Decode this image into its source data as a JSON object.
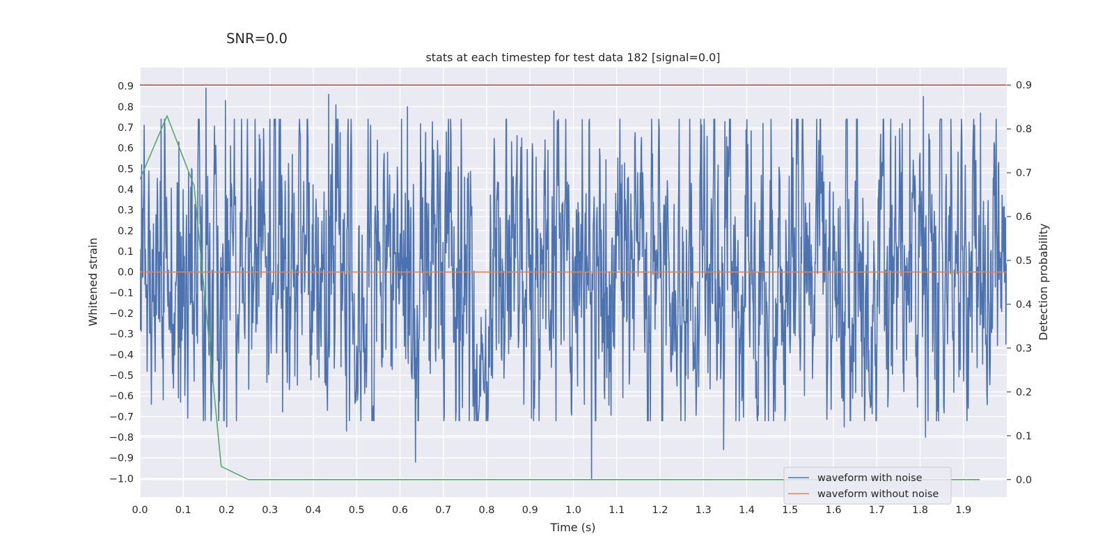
{
  "chart_data": {
    "type": "line",
    "suptitle": "SNR=0.0",
    "title": "stats at each timestep for test data 182 [signal=0.0]",
    "xlabel": "Time (s)",
    "ylabel": "Whitened strain",
    "y2label": "Detection probability",
    "xlim": [
      0.0,
      2.0
    ],
    "ylim": [
      -1.09,
      0.99
    ],
    "y2lim": [
      -0.04,
      0.94
    ],
    "grid": true,
    "legend_position": "lower-right",
    "xticks": [
      "0.0",
      "0.1",
      "0.2",
      "0.3",
      "0.4",
      "0.5",
      "0.6",
      "0.7",
      "0.8",
      "0.9",
      "1.0",
      "1.1",
      "1.2",
      "1.3",
      "1.4",
      "1.5",
      "1.6",
      "1.7",
      "1.8",
      "1.9"
    ],
    "yticks": [
      "0.9",
      "0.8",
      "0.7",
      "0.6",
      "0.5",
      "0.4",
      "0.3",
      "0.2",
      "0.1",
      "0.0",
      "−0.1",
      "−0.2",
      "−0.3",
      "−0.4",
      "−0.5",
      "−0.6",
      "−0.7",
      "−0.8",
      "−0.9",
      "−1.0"
    ],
    "y2ticks": [
      "0.9",
      "0.8",
      "0.7",
      "0.6",
      "0.5",
      "0.4",
      "0.3",
      "0.2",
      "0.1",
      "0.0"
    ],
    "series": [
      {
        "name": "waveform with noise",
        "axis": "left",
        "color": "#4c72b0",
        "kind": "noise",
        "n_samples": 2048,
        "x_range": [
          0.0,
          1.999
        ],
        "spikes": [
          {
            "x": 0.152,
            "y": 0.89
          },
          {
            "x": 0.197,
            "y": 0.83
          },
          {
            "x": 0.436,
            "y": 0.86
          },
          {
            "x": 0.452,
            "y": 0.81
          },
          {
            "x": 0.617,
            "y": 0.8
          },
          {
            "x": 0.955,
            "y": 0.78
          },
          {
            "x": 1.808,
            "y": 0.85
          },
          {
            "x": 1.939,
            "y": 0.77
          },
          {
            "x": 1.042,
            "y": -1.0
          },
          {
            "x": 0.636,
            "y": -0.92
          },
          {
            "x": 1.347,
            "y": -0.86
          },
          {
            "x": 1.812,
            "y": -0.8
          },
          {
            "x": 0.477,
            "y": -0.77
          },
          {
            "x": 0.2,
            "y": -0.75
          },
          {
            "x": 1.625,
            "y": -0.75
          },
          {
            "x": 0.094,
            "y": -0.63
          },
          {
            "x": 0.09,
            "y": 0.63
          }
        ]
      },
      {
        "name": "waveform without noise",
        "axis": "left",
        "color": "#dd8452",
        "x": [
          0.0,
          1.999
        ],
        "y": [
          0.0,
          0.0
        ]
      },
      {
        "name": "detection probability",
        "axis": "right",
        "color": "#55a868",
        "x": [
          0.0,
          0.0625,
          0.125,
          0.1875,
          0.25,
          0.3125,
          0.375,
          0.4375,
          0.5,
          0.5625,
          0.625,
          0.6875,
          0.75,
          0.8125,
          0.875,
          0.9375,
          1.0,
          1.0625,
          1.125,
          1.1875,
          1.25,
          1.3125,
          1.375,
          1.4375,
          1.5,
          1.5625,
          1.625,
          1.6875,
          1.75,
          1.8125,
          1.875,
          1.9375
        ],
        "y": [
          0.685,
          0.83,
          0.67,
          0.03,
          0.0,
          0.0,
          0.0,
          0.0,
          0.0,
          0.0,
          0.0,
          0.0,
          0.0,
          0.0,
          0.0,
          0.0,
          0.0,
          0.0,
          0.0,
          0.0,
          0.0,
          0.0,
          0.0,
          0.0,
          0.0,
          0.0,
          0.0,
          0.0,
          0.0,
          0.0,
          0.0,
          0.0
        ]
      },
      {
        "name": "threshold",
        "axis": "right",
        "color": "#c44e52",
        "x": [
          0.0,
          1.999
        ],
        "y": [
          0.9,
          0.9
        ]
      }
    ],
    "legend": [
      {
        "label": "waveform with noise",
        "color": "#4c72b0"
      },
      {
        "label": "waveform without noise",
        "color": "#dd8452"
      }
    ]
  }
}
